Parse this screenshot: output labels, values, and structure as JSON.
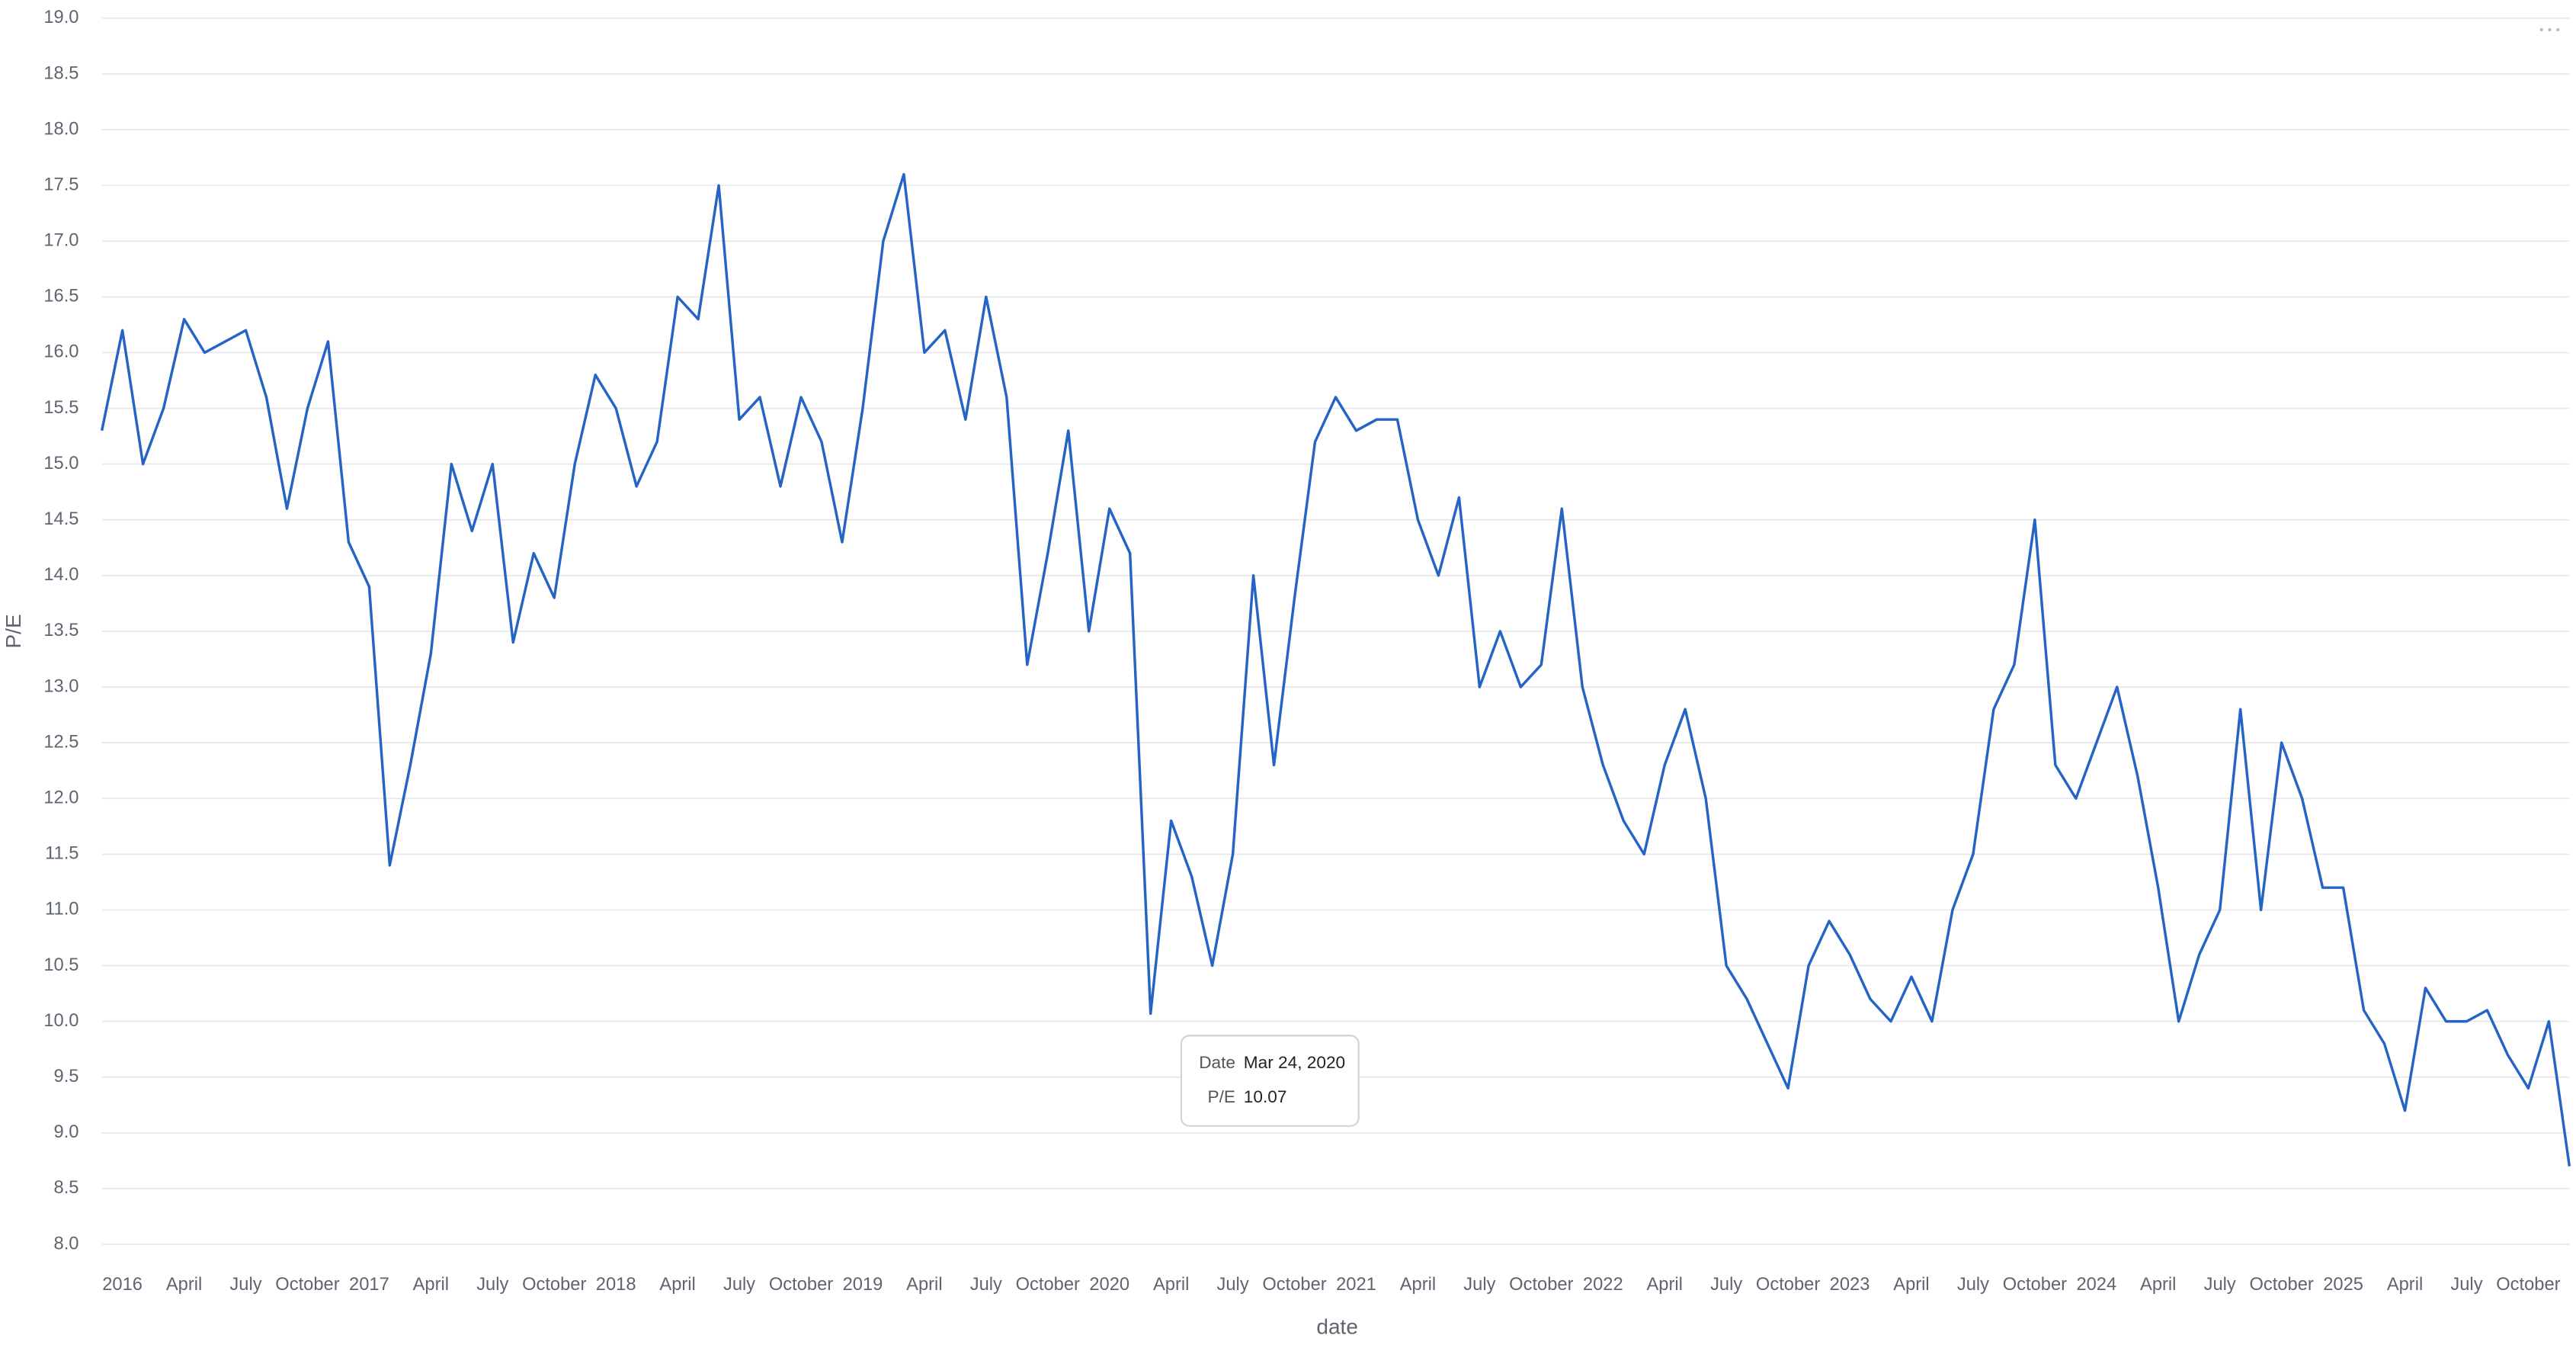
{
  "chart_data": {
    "type": "line",
    "x_label": "date",
    "y_label": "P/E",
    "x": [
      "2015-12",
      "2016-01",
      "2016-02",
      "2016-03",
      "2016-04",
      "2016-05",
      "2016-06",
      "2016-07",
      "2016-08",
      "2016-09",
      "2016-10",
      "2016-11",
      "2016-12",
      "2017-01",
      "2017-02",
      "2017-03",
      "2017-04",
      "2017-05",
      "2017-06",
      "2017-07",
      "2017-08",
      "2017-09",
      "2017-10",
      "2017-11",
      "2017-12",
      "2018-01",
      "2018-02",
      "2018-03",
      "2018-04",
      "2018-05",
      "2018-06",
      "2018-07",
      "2018-08",
      "2018-09",
      "2018-10",
      "2018-11",
      "2018-12",
      "2019-01",
      "2019-02",
      "2019-03",
      "2019-04",
      "2019-05",
      "2019-06",
      "2019-07",
      "2019-08",
      "2019-09",
      "2019-10",
      "2019-11",
      "2019-12",
      "2020-01",
      "2020-02",
      "2020-03",
      "2020-04",
      "2020-05",
      "2020-06",
      "2020-07",
      "2020-08",
      "2020-09",
      "2020-10",
      "2020-11",
      "2020-12",
      "2021-01",
      "2021-02",
      "2021-03",
      "2021-04",
      "2021-05",
      "2021-06",
      "2021-07",
      "2021-08",
      "2021-09",
      "2021-10",
      "2021-11",
      "2021-12",
      "2022-01",
      "2022-02",
      "2022-03",
      "2022-04",
      "2022-05",
      "2022-06",
      "2022-07",
      "2022-08",
      "2022-09",
      "2022-10",
      "2022-11",
      "2022-12",
      "2023-01",
      "2023-02",
      "2023-03",
      "2023-04",
      "2023-05",
      "2023-06",
      "2023-07",
      "2023-08",
      "2023-09",
      "2023-10",
      "2023-11",
      "2023-12",
      "2024-01",
      "2024-02",
      "2024-03",
      "2024-04",
      "2024-05",
      "2024-06",
      "2024-07",
      "2024-08",
      "2024-09",
      "2024-10",
      "2024-11",
      "2024-12",
      "2025-01",
      "2025-02",
      "2025-03",
      "2025-04",
      "2025-05",
      "2025-06",
      "2025-07",
      "2025-08",
      "2025-09",
      "2025-10",
      "2025-11",
      "2025-12"
    ],
    "series": [
      {
        "name": "P/E",
        "color": "#2563c4",
        "values": [
          15.3,
          16.2,
          15.0,
          15.5,
          16.3,
          16.0,
          16.1,
          16.2,
          15.6,
          14.6,
          15.5,
          16.1,
          14.3,
          13.9,
          11.4,
          12.3,
          13.3,
          15.0,
          14.4,
          15.0,
          13.4,
          14.2,
          13.8,
          15.0,
          15.8,
          15.5,
          14.8,
          15.2,
          16.5,
          16.3,
          17.5,
          15.4,
          15.6,
          14.8,
          15.6,
          15.2,
          14.3,
          15.5,
          17.0,
          17.6,
          16.0,
          16.2,
          15.4,
          16.5,
          15.6,
          13.2,
          14.2,
          15.3,
          13.5,
          14.6,
          14.2,
          10.07,
          11.8,
          11.3,
          10.5,
          11.5,
          14.0,
          12.3,
          13.8,
          15.2,
          15.6,
          15.3,
          15.4,
          15.4,
          14.5,
          14.0,
          14.7,
          13.0,
          13.5,
          13.0,
          13.2,
          14.6,
          13.0,
          12.3,
          11.8,
          11.5,
          12.3,
          12.8,
          12.0,
          10.5,
          10.2,
          9.8,
          9.4,
          10.5,
          10.9,
          10.6,
          10.2,
          10.0,
          10.4,
          10.0,
          11.0,
          11.5,
          12.8,
          13.2,
          14.5,
          12.3,
          12.0,
          12.5,
          13.0,
          12.2,
          11.2,
          10.0,
          10.6,
          11.0,
          12.8,
          11.0,
          12.5,
          12.0,
          11.2,
          11.2,
          10.1,
          9.8,
          9.2,
          10.3,
          10.0,
          10.0,
          10.1,
          9.7,
          9.4,
          10.0,
          8.7
        ]
      }
    ],
    "xlim": [
      "2015-12",
      "2025-12"
    ],
    "xticks": [
      {
        "value": "2016-01",
        "label": "2016"
      },
      {
        "value": "2016-04",
        "label": "April"
      },
      {
        "value": "2016-07",
        "label": "July"
      },
      {
        "value": "2016-10",
        "label": "October"
      },
      {
        "value": "2017-01",
        "label": "2017"
      },
      {
        "value": "2017-04",
        "label": "April"
      },
      {
        "value": "2017-07",
        "label": "July"
      },
      {
        "value": "2017-10",
        "label": "October"
      },
      {
        "value": "2018-01",
        "label": "2018"
      },
      {
        "value": "2018-04",
        "label": "April"
      },
      {
        "value": "2018-07",
        "label": "July"
      },
      {
        "value": "2018-10",
        "label": "October"
      },
      {
        "value": "2019-01",
        "label": "2019"
      },
      {
        "value": "2019-04",
        "label": "April"
      },
      {
        "value": "2019-07",
        "label": "July"
      },
      {
        "value": "2019-10",
        "label": "October"
      },
      {
        "value": "2020-01",
        "label": "2020"
      },
      {
        "value": "2020-04",
        "label": "April"
      },
      {
        "value": "2020-07",
        "label": "July"
      },
      {
        "value": "2020-10",
        "label": "October"
      },
      {
        "value": "2021-01",
        "label": "2021"
      },
      {
        "value": "2021-04",
        "label": "April"
      },
      {
        "value": "2021-07",
        "label": "July"
      },
      {
        "value": "2021-10",
        "label": "October"
      },
      {
        "value": "2022-01",
        "label": "2022"
      },
      {
        "value": "2022-04",
        "label": "April"
      },
      {
        "value": "2022-07",
        "label": "July"
      },
      {
        "value": "2022-10",
        "label": "October"
      },
      {
        "value": "2023-01",
        "label": "2023"
      },
      {
        "value": "2023-04",
        "label": "April"
      },
      {
        "value": "2023-07",
        "label": "July"
      },
      {
        "value": "2023-10",
        "label": "October"
      },
      {
        "value": "2024-01",
        "label": "2024"
      },
      {
        "value": "2024-04",
        "label": "April"
      },
      {
        "value": "2024-07",
        "label": "July"
      },
      {
        "value": "2024-10",
        "label": "October"
      },
      {
        "value": "2025-01",
        "label": "2025"
      },
      {
        "value": "2025-04",
        "label": "April"
      },
      {
        "value": "2025-07",
        "label": "July"
      },
      {
        "value": "2025-10",
        "label": "October"
      }
    ],
    "ylim": [
      8,
      19
    ],
    "yticks": [
      {
        "value": 8,
        "label": "8.0"
      },
      8.5,
      {
        "value": 9,
        "label": "9.0"
      },
      9.5,
      {
        "value": 10,
        "label": "10.0"
      },
      10.5,
      {
        "value": 11,
        "label": "11.0"
      },
      11.5,
      {
        "value": 12,
        "label": "12.0"
      },
      12.5,
      {
        "value": 13,
        "label": "13.0"
      },
      13.5,
      {
        "value": 14,
        "label": "14.0"
      },
      14.5,
      {
        "value": 15,
        "label": "15.0"
      },
      15.5,
      {
        "value": 16,
        "label": "16.0"
      },
      16.5,
      {
        "value": 17,
        "label": "17.0"
      },
      17.5,
      {
        "value": 18,
        "label": "18.0"
      },
      18.5,
      {
        "value": 19,
        "label": "19.0"
      }
    ],
    "grid": true,
    "tooltip": {
      "fields": [
        {
          "label": "Date",
          "value": "Mar 24, 2020"
        },
        {
          "label": "P/E",
          "value": 10.07
        }
      ]
    }
  }
}
